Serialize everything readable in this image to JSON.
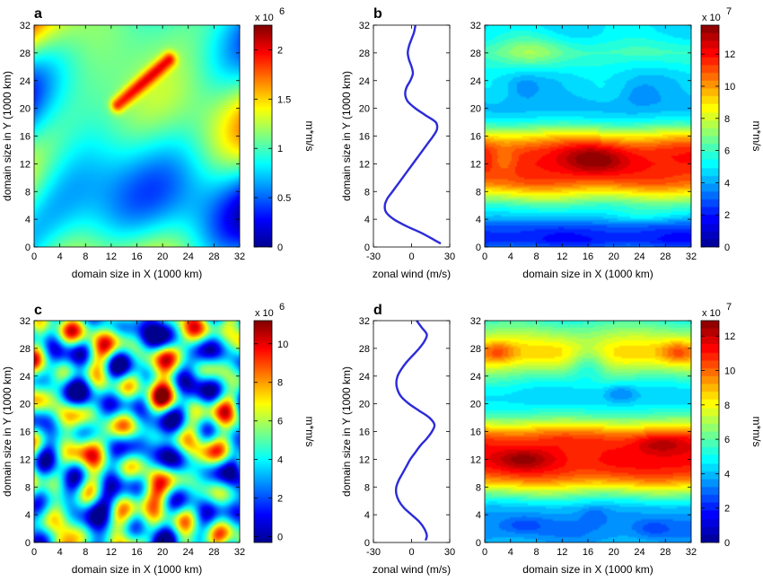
{
  "colors": {
    "jet_stops": [
      "#00008f",
      "#0000ff",
      "#00ffff",
      "#ffff00",
      "#ff0000",
      "#800000"
    ],
    "wind_line": "#2b2bd9"
  },
  "chart_data": [
    {
      "panel": "a",
      "type": "heatmap",
      "xlabel": "domain size in X (1000 km)",
      "ylabel": "domain size in Y (1000 km)",
      "xlim": [
        0,
        32
      ],
      "ylim": [
        0,
        32
      ],
      "xticks": [
        0,
        4,
        8,
        12,
        16,
        20,
        24,
        28,
        32
      ],
      "yticks": [
        0,
        4,
        8,
        12,
        16,
        20,
        24,
        28,
        32
      ],
      "colorbar": {
        "unit": "m*m/s",
        "exponent": "x 10",
        "power": "6",
        "ticks": [
          "0",
          "0.5",
          "1",
          "1.5",
          "2"
        ],
        "tick_values": [
          0,
          0.5,
          1,
          1.5,
          2
        ],
        "clim": [
          0,
          2.25
        ]
      },
      "field": {
        "pattern": "random",
        "base": 0.95,
        "amp": 0.55,
        "waves": 7,
        "kmin": 0.18,
        "kmax": 0.6,
        "seed": 11,
        "ridge": {
          "x0": 13,
          "y0": 20.5,
          "x1": 21,
          "y1": 27,
          "amp": 0.8
        }
      }
    },
    {
      "panel": "b",
      "type": "line",
      "xlabel": "zonal wind (m/s)",
      "ylabel": "domain size in Y (1000 km)",
      "xlim": [
        -30,
        30
      ],
      "ylim": [
        0,
        32
      ],
      "xticks": [
        -30,
        0,
        30
      ],
      "yticks": [
        0,
        4,
        8,
        12,
        16,
        20,
        24,
        28,
        32
      ],
      "series": [
        {
          "y": [
            0.5,
            1,
            2,
            3,
            4,
            5,
            6,
            7,
            8,
            9,
            10,
            11,
            12,
            13,
            14,
            15,
            16,
            17,
            18,
            19,
            20,
            21,
            22,
            23,
            24,
            25,
            26,
            27,
            28,
            29,
            30,
            31,
            32
          ],
          "x": [
            23,
            18,
            8,
            -4,
            -14,
            -20,
            -21,
            -19,
            -15,
            -11,
            -7,
            -3,
            1,
            5,
            9,
            13,
            17,
            20,
            19,
            11,
            3,
            -3,
            -5,
            -4,
            -1,
            1,
            0,
            -2,
            -3,
            -2,
            0,
            2,
            3
          ]
        }
      ]
    },
    {
      "panel": "b",
      "type": "heatmap",
      "xlabel": "domain size in X (1000 km)",
      "xlim": [
        0,
        32
      ],
      "ylim": [
        0,
        32
      ],
      "xticks": [
        0,
        4,
        8,
        12,
        16,
        20,
        24,
        28,
        32
      ],
      "yticks": [
        0,
        4,
        8,
        12,
        16,
        20,
        24,
        28,
        32
      ],
      "colorbar": {
        "unit": "m*m/s",
        "exponent": "x 10",
        "power": "7",
        "ticks": [
          "0",
          "2",
          "4",
          "6",
          "8",
          "10",
          "12"
        ],
        "tick_values": [
          0,
          2,
          4,
          6,
          8,
          10,
          12
        ],
        "clim": [
          0,
          13.8
        ]
      },
      "field": {
        "pattern": "banded",
        "profile": {
          "y": [
            0,
            1,
            2,
            3,
            4,
            5,
            6,
            7,
            8,
            9,
            10,
            11,
            12,
            13,
            14,
            15,
            16,
            17,
            18,
            19,
            20,
            21,
            22,
            23,
            24,
            25,
            26,
            27,
            28,
            29,
            30,
            31,
            32
          ],
          "v": [
            3,
            2,
            2.2,
            2.8,
            4,
            5,
            6,
            7.5,
            9,
            10.5,
            11.2,
            11.6,
            11.8,
            11.8,
            11.5,
            10.5,
            9,
            7.2,
            5.6,
            4.6,
            4.3,
            4.3,
            4.5,
            4.6,
            4.6,
            4.8,
            5.2,
            5.6,
            6,
            5.7,
            5.2,
            4.9,
            4.8
          ]
        },
        "blobs": [
          {
            "x": 17,
            "y": 12.5,
            "sx": 5,
            "sy": 2.2,
            "a": 2.0
          },
          {
            "x": 3,
            "y": 12.5,
            "sx": 2,
            "sy": 2,
            "a": -1.2
          },
          {
            "x": 7,
            "y": 28,
            "sx": 5,
            "sy": 2.5,
            "a": 1.4
          },
          {
            "x": 6,
            "y": 23,
            "sx": 2.5,
            "sy": 1.8,
            "a": -0.8
          },
          {
            "x": 24,
            "y": 22,
            "sx": 3,
            "sy": 1.8,
            "a": -0.8
          },
          {
            "x": 24,
            "y": 4.5,
            "sx": 5,
            "sy": 1.3,
            "a": 0.8
          }
        ],
        "wave_amp": 0.35
      }
    },
    {
      "panel": "c",
      "type": "heatmap",
      "xlabel": "domain size in X (1000 km)",
      "ylabel": "domain size in Y (1000 km)",
      "xlim": [
        0,
        32
      ],
      "ylim": [
        0,
        32
      ],
      "xticks": [
        0,
        4,
        8,
        12,
        16,
        20,
        24,
        28,
        32
      ],
      "yticks": [
        0,
        4,
        8,
        12,
        16,
        20,
        24,
        28,
        32
      ],
      "colorbar": {
        "unit": "m*m/s",
        "exponent": "x 10",
        "power": "6",
        "ticks": [
          "0",
          "2",
          "4",
          "6",
          "8",
          "10"
        ],
        "tick_values": [
          0,
          2,
          4,
          6,
          8,
          10
        ],
        "clim": [
          -0.3,
          11.2
        ]
      },
      "field": {
        "pattern": "random",
        "base": 4.3,
        "amp": 2.4,
        "waves": 10,
        "kmin": 0.45,
        "kmax": 1.3,
        "seed": 29
      }
    },
    {
      "panel": "d",
      "type": "line",
      "xlabel": "zonal wind (m/s)",
      "ylabel": "domain size in Y (1000 km)",
      "xlim": [
        -30,
        30
      ],
      "ylim": [
        0,
        32
      ],
      "xticks": [
        -30,
        0,
        30
      ],
      "yticks": [
        0,
        4,
        8,
        12,
        16,
        20,
        24,
        28,
        32
      ],
      "series": [
        {
          "y": [
            0.3,
            1,
            2,
            3,
            4,
            5,
            6,
            7,
            8,
            9,
            10,
            11,
            12,
            13,
            14,
            15,
            16,
            17,
            18,
            19,
            20,
            21,
            22,
            23,
            24,
            25,
            26,
            27,
            28,
            29,
            30,
            31,
            32
          ],
          "x": [
            11,
            12,
            10,
            6,
            0,
            -6,
            -10,
            -12,
            -12,
            -10,
            -7,
            -4,
            -1,
            3,
            7,
            12,
            16,
            18,
            14,
            6,
            -2,
            -8,
            -11,
            -12,
            -11,
            -8,
            -4,
            1,
            6,
            10,
            12,
            8,
            4
          ]
        }
      ]
    },
    {
      "panel": "d",
      "type": "heatmap",
      "xlabel": "domain size in X (1000 km)",
      "xlim": [
        0,
        32
      ],
      "ylim": [
        0,
        32
      ],
      "xticks": [
        0,
        4,
        8,
        12,
        16,
        20,
        24,
        28,
        32
      ],
      "yticks": [
        0,
        4,
        8,
        12,
        16,
        20,
        24,
        28,
        32
      ],
      "colorbar": {
        "unit": "m*m/s",
        "exponent": "x 10",
        "power": "7",
        "ticks": [
          "0",
          "2",
          "4",
          "6",
          "8",
          "10",
          "12"
        ],
        "tick_values": [
          0,
          2,
          4,
          6,
          8,
          10,
          12
        ],
        "clim": [
          0,
          12.9
        ]
      },
      "field": {
        "pattern": "banded",
        "profile": {
          "y": [
            0,
            1,
            2,
            3,
            4,
            5,
            6,
            7,
            8,
            9,
            10,
            11,
            12,
            13,
            14,
            15,
            16,
            17,
            18,
            19,
            20,
            21,
            22,
            23,
            24,
            25,
            26,
            27,
            28,
            29,
            30,
            31,
            32
          ],
          "v": [
            3.8,
            3.4,
            3.2,
            3.3,
            3.6,
            4,
            5,
            6.5,
            8,
            9.6,
            10.6,
            11.1,
            11.3,
            11.2,
            11,
            10.6,
            9.5,
            7.8,
            6.2,
            5.2,
            4.6,
            4.4,
            4.6,
            5.2,
            6,
            7,
            8,
            8.6,
            8.5,
            7.8,
            7,
            6.2,
            5.5
          ]
        },
        "blobs": [
          {
            "x": 6,
            "y": 12,
            "sx": 4,
            "sy": 1.6,
            "a": 1.5
          },
          {
            "x": 27,
            "y": 14.2,
            "sx": 4,
            "sy": 1.4,
            "a": 1.4
          },
          {
            "x": 15,
            "y": 13,
            "sx": 3,
            "sy": 2,
            "a": -0.7
          },
          {
            "x": 2,
            "y": 27.5,
            "sx": 2.5,
            "sy": 1.6,
            "a": 1.8
          },
          {
            "x": 30,
            "y": 27.5,
            "sx": 2.5,
            "sy": 1.6,
            "a": 1.8
          },
          {
            "x": 16,
            "y": 26,
            "sx": 3,
            "sy": 2.5,
            "a": -2.2
          },
          {
            "x": 21,
            "y": 21.5,
            "sx": 2.5,
            "sy": 1.4,
            "a": -1.4
          },
          {
            "x": 6,
            "y": 2.5,
            "sx": 3,
            "sy": 1.2,
            "a": -0.9
          },
          {
            "x": 17,
            "y": 4,
            "sx": 2,
            "sy": 1.2,
            "a": -0.8
          },
          {
            "x": 26,
            "y": 2,
            "sx": 2.5,
            "sy": 1.2,
            "a": -0.8
          }
        ],
        "wave_amp": 0.3
      }
    }
  ]
}
